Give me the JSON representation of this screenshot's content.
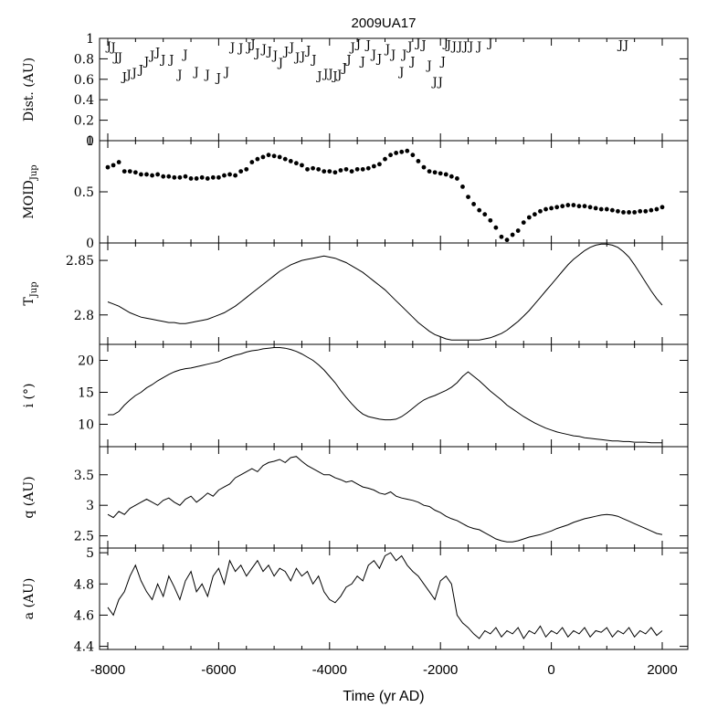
{
  "title": "2009UA17",
  "xlabel": "Time (yr AD)",
  "x_ticks": [
    "-8000",
    "-6000",
    "-4000",
    "-2000",
    "0",
    "2000"
  ],
  "colors": {
    "line": "#000000",
    "background": "#ffffff"
  },
  "chart_data": [
    {
      "type": "scatter",
      "marker": "J",
      "ylabel": "Dist. (AU)",
      "ylim": [
        0,
        1
      ],
      "y_ticks": [
        "0",
        "0.2",
        "0.4",
        "0.6",
        "0.8",
        "1"
      ],
      "x": [
        -7980,
        -7900,
        -7850,
        -7780,
        -7700,
        -7620,
        -7520,
        -7400,
        -7300,
        -7200,
        -7100,
        -7000,
        -6850,
        -6700,
        -6600,
        -6400,
        -6200,
        -6000,
        -5850,
        -5750,
        -5600,
        -5450,
        -5380,
        -5300,
        -5180,
        -5080,
        -4980,
        -4880,
        -4780,
        -4680,
        -4580,
        -4480,
        -4380,
        -4280,
        -4180,
        -4070,
        -3980,
        -3900,
        -3820,
        -3730,
        -3650,
        -3580,
        -3480,
        -3400,
        -3300,
        -3200,
        -3100,
        -2950,
        -2850,
        -2700,
        -2650,
        -2550,
        -2500,
        -2400,
        -2300,
        -2200,
        -2100,
        -2000,
        -1950,
        -1900,
        -1850,
        -1750,
        -1650,
        -1550,
        -1450,
        -1300,
        -1100,
        1250,
        1350
      ],
      "values": [
        0.93,
        0.92,
        0.82,
        0.82,
        0.63,
        0.65,
        0.67,
        0.7,
        0.78,
        0.84,
        0.87,
        0.8,
        0.8,
        0.65,
        0.85,
        0.68,
        0.65,
        0.62,
        0.68,
        0.92,
        0.91,
        0.92,
        0.95,
        0.86,
        0.9,
        0.88,
        0.84,
        0.77,
        0.88,
        0.92,
        0.82,
        0.83,
        0.89,
        0.8,
        0.64,
        0.66,
        0.66,
        0.64,
        0.65,
        0.72,
        0.8,
        0.92,
        0.95,
        0.78,
        0.94,
        0.85,
        0.81,
        0.9,
        0.85,
        0.68,
        0.85,
        0.93,
        0.78,
        0.96,
        0.94,
        0.74,
        0.58,
        0.58,
        0.78,
        0.96,
        0.94,
        0.93,
        0.93,
        0.93,
        0.93,
        0.93,
        0.96,
        0.94,
        0.94
      ]
    },
    {
      "type": "scatter",
      "ylabel": "MOIDJup",
      "ylim": [
        0,
        1
      ],
      "y_ticks": [
        "0",
        "0.5",
        "1"
      ],
      "x": [
        -8000,
        -7900,
        -7800,
        -7700,
        -7600,
        -7500,
        -7400,
        -7300,
        -7200,
        -7100,
        -7000,
        -6900,
        -6800,
        -6700,
        -6600,
        -6500,
        -6400,
        -6300,
        -6200,
        -6100,
        -6000,
        -5900,
        -5800,
        -5700,
        -5600,
        -5500,
        -5400,
        -5300,
        -5200,
        -5100,
        -5000,
        -4900,
        -4800,
        -4700,
        -4600,
        -4500,
        -4400,
        -4300,
        -4200,
        -4100,
        -4000,
        -3900,
        -3800,
        -3700,
        -3600,
        -3500,
        -3400,
        -3300,
        -3200,
        -3100,
        -3000,
        -2900,
        -2800,
        -2700,
        -2600,
        -2500,
        -2400,
        -2300,
        -2200,
        -2100,
        -2000,
        -1900,
        -1800,
        -1700,
        -1600,
        -1500,
        -1400,
        -1300,
        -1200,
        -1100,
        -1000,
        -900,
        -800,
        -700,
        -600,
        -500,
        -400,
        -300,
        -200,
        -100,
        0,
        100,
        200,
        300,
        400,
        500,
        600,
        700,
        800,
        900,
        1000,
        1100,
        1200,
        1300,
        1400,
        1500,
        1600,
        1700,
        1800,
        1900,
        2000
      ],
      "values": [
        0.74,
        0.76,
        0.79,
        0.7,
        0.7,
        0.69,
        0.67,
        0.67,
        0.66,
        0.67,
        0.65,
        0.65,
        0.64,
        0.64,
        0.65,
        0.63,
        0.63,
        0.64,
        0.63,
        0.64,
        0.64,
        0.66,
        0.67,
        0.66,
        0.7,
        0.72,
        0.79,
        0.82,
        0.84,
        0.86,
        0.85,
        0.84,
        0.82,
        0.8,
        0.78,
        0.76,
        0.72,
        0.73,
        0.72,
        0.7,
        0.7,
        0.69,
        0.71,
        0.72,
        0.7,
        0.72,
        0.72,
        0.73,
        0.75,
        0.77,
        0.82,
        0.86,
        0.88,
        0.89,
        0.9,
        0.86,
        0.8,
        0.74,
        0.7,
        0.69,
        0.68,
        0.67,
        0.65,
        0.63,
        0.55,
        0.45,
        0.38,
        0.32,
        0.28,
        0.22,
        0.15,
        0.06,
        0.03,
        0.08,
        0.12,
        0.2,
        0.25,
        0.28,
        0.31,
        0.33,
        0.34,
        0.35,
        0.36,
        0.37,
        0.37,
        0.36,
        0.36,
        0.35,
        0.34,
        0.33,
        0.33,
        0.32,
        0.31,
        0.3,
        0.3,
        0.3,
        0.31,
        0.31,
        0.32,
        0.33,
        0.35
      ]
    },
    {
      "type": "line",
      "ylabel": "TJup",
      "ylim": [
        2.773,
        2.866
      ],
      "y_ticks": [
        "2.8",
        "2.85"
      ],
      "x": [
        -8000,
        -7900,
        -7800,
        -7700,
        -7600,
        -7500,
        -7400,
        -7300,
        -7200,
        -7100,
        -7000,
        -6900,
        -6800,
        -6700,
        -6600,
        -6500,
        -6400,
        -6300,
        -6200,
        -6100,
        -6000,
        -5900,
        -5800,
        -5700,
        -5600,
        -5500,
        -5400,
        -5300,
        -5200,
        -5100,
        -5000,
        -4900,
        -4800,
        -4700,
        -4600,
        -4500,
        -4400,
        -4300,
        -4200,
        -4100,
        -4000,
        -3900,
        -3800,
        -3700,
        -3600,
        -3500,
        -3400,
        -3300,
        -3200,
        -3100,
        -3000,
        -2900,
        -2800,
        -2700,
        -2600,
        -2500,
        -2400,
        -2300,
        -2200,
        -2100,
        -2000,
        -1900,
        -1800,
        -1700,
        -1600,
        -1500,
        -1400,
        -1300,
        -1200,
        -1100,
        -1000,
        -900,
        -800,
        -700,
        -600,
        -500,
        -400,
        -300,
        -200,
        -100,
        0,
        100,
        200,
        300,
        400,
        500,
        600,
        700,
        800,
        900,
        1000,
        1100,
        1200,
        1300,
        1400,
        1500,
        1600,
        1700,
        1800,
        1900,
        2000
      ],
      "values": [
        2.812,
        2.81,
        2.808,
        2.805,
        2.802,
        2.8,
        2.798,
        2.797,
        2.796,
        2.795,
        2.794,
        2.793,
        2.793,
        2.792,
        2.792,
        2.793,
        2.794,
        2.795,
        2.796,
        2.798,
        2.8,
        2.802,
        2.805,
        2.808,
        2.812,
        2.816,
        2.82,
        2.824,
        2.828,
        2.832,
        2.836,
        2.84,
        2.843,
        2.846,
        2.848,
        2.85,
        2.851,
        2.852,
        2.853,
        2.854,
        2.853,
        2.852,
        2.85,
        2.848,
        2.845,
        2.842,
        2.839,
        2.835,
        2.831,
        2.827,
        2.823,
        2.818,
        2.813,
        2.808,
        2.803,
        2.798,
        2.793,
        2.789,
        2.785,
        2.782,
        2.78,
        2.778,
        2.777,
        2.777,
        2.777,
        2.777,
        2.777,
        2.777,
        2.778,
        2.779,
        2.781,
        2.783,
        2.786,
        2.79,
        2.794,
        2.799,
        2.804,
        2.81,
        2.816,
        2.822,
        2.828,
        2.834,
        2.84,
        2.846,
        2.851,
        2.855,
        2.859,
        2.862,
        2.864,
        2.865,
        2.865,
        2.864,
        2.862,
        2.858,
        2.853,
        2.846,
        2.838,
        2.83,
        2.822,
        2.815,
        2.809
      ]
    },
    {
      "type": "line",
      "ylabel": "i (°)",
      "ylim": [
        6.5,
        22.5
      ],
      "y_ticks": [
        "10",
        "15",
        "20"
      ],
      "x": [
        -8000,
        -7900,
        -7800,
        -7700,
        -7600,
        -7500,
        -7400,
        -7300,
        -7200,
        -7100,
        -7000,
        -6900,
        -6800,
        -6700,
        -6600,
        -6500,
        -6400,
        -6300,
        -6200,
        -6100,
        -6000,
        -5900,
        -5800,
        -5700,
        -5600,
        -5500,
        -5400,
        -5300,
        -5200,
        -5100,
        -5000,
        -4900,
        -4800,
        -4700,
        -4600,
        -4500,
        -4400,
        -4300,
        -4200,
        -4100,
        -4000,
        -3900,
        -3800,
        -3700,
        -3600,
        -3500,
        -3400,
        -3300,
        -3200,
        -3100,
        -3000,
        -2900,
        -2800,
        -2700,
        -2600,
        -2500,
        -2400,
        -2300,
        -2200,
        -2100,
        -2000,
        -1900,
        -1800,
        -1700,
        -1600,
        -1500,
        -1400,
        -1300,
        -1200,
        -1100,
        -1000,
        -900,
        -800,
        -700,
        -600,
        -500,
        -400,
        -300,
        -200,
        -100,
        0,
        100,
        200,
        300,
        400,
        500,
        600,
        700,
        800,
        900,
        1000,
        1100,
        1200,
        1300,
        1400,
        1500,
        1600,
        1700,
        1800,
        1900,
        2000
      ],
      "values": [
        11.5,
        11.5,
        12.0,
        13.0,
        13.8,
        14.5,
        15.0,
        15.7,
        16.2,
        16.8,
        17.3,
        17.8,
        18.2,
        18.5,
        18.7,
        18.8,
        19.0,
        19.2,
        19.4,
        19.6,
        19.8,
        20.2,
        20.5,
        20.8,
        21.0,
        21.3,
        21.5,
        21.6,
        21.8,
        21.9,
        22.0,
        22.0,
        21.9,
        21.7,
        21.4,
        21.0,
        20.5,
        20.0,
        19.3,
        18.5,
        17.5,
        16.5,
        15.3,
        14.2,
        13.2,
        12.3,
        11.6,
        11.2,
        11.0,
        10.8,
        10.7,
        10.7,
        10.8,
        11.2,
        11.8,
        12.5,
        13.2,
        13.8,
        14.2,
        14.5,
        14.9,
        15.3,
        15.8,
        16.5,
        17.5,
        18.2,
        17.5,
        16.8,
        16.0,
        15.2,
        14.5,
        13.8,
        13.0,
        12.4,
        11.8,
        11.2,
        10.7,
        10.2,
        9.8,
        9.4,
        9.1,
        8.8,
        8.6,
        8.4,
        8.2,
        8.1,
        7.9,
        7.8,
        7.7,
        7.6,
        7.5,
        7.4,
        7.4,
        7.3,
        7.3,
        7.2,
        7.2,
        7.2,
        7.1,
        7.1,
        7.1
      ]
    },
    {
      "type": "line",
      "ylabel": "q (AU)",
      "ylim": [
        2.3,
        3.96
      ],
      "y_ticks": [
        "2.5",
        "3",
        "3.5"
      ],
      "x": [
        -8000,
        -7900,
        -7800,
        -7700,
        -7600,
        -7500,
        -7400,
        -7300,
        -7200,
        -7100,
        -7000,
        -6900,
        -6800,
        -6700,
        -6600,
        -6500,
        -6400,
        -6300,
        -6200,
        -6100,
        -6000,
        -5900,
        -5800,
        -5700,
        -5600,
        -5500,
        -5400,
        -5300,
        -5200,
        -5100,
        -5000,
        -4900,
        -4800,
        -4700,
        -4600,
        -4500,
        -4400,
        -4300,
        -4200,
        -4100,
        -4000,
        -3900,
        -3800,
        -3700,
        -3600,
        -3500,
        -3400,
        -3300,
        -3200,
        -3100,
        -3000,
        -2900,
        -2800,
        -2700,
        -2600,
        -2500,
        -2400,
        -2300,
        -2200,
        -2100,
        -2000,
        -1900,
        -1800,
        -1700,
        -1600,
        -1500,
        -1400,
        -1300,
        -1200,
        -1100,
        -1000,
        -900,
        -800,
        -700,
        -600,
        -500,
        -400,
        -300,
        -200,
        -100,
        0,
        100,
        200,
        300,
        400,
        500,
        600,
        700,
        800,
        900,
        1000,
        1100,
        1200,
        1300,
        1400,
        1500,
        1600,
        1700,
        1800,
        1900,
        2000
      ],
      "values": [
        2.85,
        2.8,
        2.9,
        2.85,
        2.95,
        3.0,
        3.05,
        3.1,
        3.05,
        3.0,
        3.08,
        3.12,
        3.05,
        3.0,
        3.1,
        3.15,
        3.05,
        3.12,
        3.2,
        3.15,
        3.25,
        3.3,
        3.35,
        3.45,
        3.5,
        3.55,
        3.6,
        3.55,
        3.65,
        3.7,
        3.72,
        3.75,
        3.7,
        3.78,
        3.8,
        3.72,
        3.65,
        3.6,
        3.55,
        3.5,
        3.5,
        3.45,
        3.42,
        3.38,
        3.4,
        3.35,
        3.3,
        3.28,
        3.25,
        3.2,
        3.18,
        3.22,
        3.15,
        3.12,
        3.1,
        3.08,
        3.05,
        3.0,
        2.98,
        2.92,
        2.88,
        2.82,
        2.78,
        2.75,
        2.7,
        2.65,
        2.62,
        2.6,
        2.55,
        2.5,
        2.45,
        2.42,
        2.4,
        2.4,
        2.42,
        2.45,
        2.48,
        2.5,
        2.52,
        2.55,
        2.58,
        2.62,
        2.65,
        2.68,
        2.72,
        2.75,
        2.78,
        2.8,
        2.82,
        2.84,
        2.85,
        2.84,
        2.82,
        2.78,
        2.74,
        2.7,
        2.66,
        2.62,
        2.58,
        2.54,
        2.52
      ]
    },
    {
      "type": "line",
      "ylabel": "a (AU)",
      "ylim": [
        4.38,
        5.03
      ],
      "y_ticks": [
        "4.4",
        "4.6",
        "4.8",
        "5"
      ],
      "x": [
        -8000,
        -7900,
        -7800,
        -7700,
        -7600,
        -7500,
        -7400,
        -7300,
        -7200,
        -7100,
        -7000,
        -6900,
        -6800,
        -6700,
        -6600,
        -6500,
        -6400,
        -6300,
        -6200,
        -6100,
        -6000,
        -5900,
        -5800,
        -5700,
        -5600,
        -5500,
        -5400,
        -5300,
        -5200,
        -5100,
        -5000,
        -4900,
        -4800,
        -4700,
        -4600,
        -4500,
        -4400,
        -4300,
        -4200,
        -4100,
        -4000,
        -3900,
        -3800,
        -3700,
        -3600,
        -3500,
        -3400,
        -3300,
        -3200,
        -3100,
        -3000,
        -2900,
        -2800,
        -2700,
        -2600,
        -2500,
        -2400,
        -2300,
        -2200,
        -2100,
        -2000,
        -1900,
        -1800,
        -1700,
        -1600,
        -1500,
        -1400,
        -1300,
        -1200,
        -1100,
        -1000,
        -900,
        -800,
        -700,
        -600,
        -500,
        -400,
        -300,
        -200,
        -100,
        0,
        100,
        200,
        300,
        400,
        500,
        600,
        700,
        800,
        900,
        1000,
        1100,
        1200,
        1300,
        1400,
        1500,
        1600,
        1700,
        1800,
        1900,
        2000
      ],
      "values": [
        4.65,
        4.6,
        4.7,
        4.75,
        4.85,
        4.92,
        4.82,
        4.75,
        4.7,
        4.8,
        4.72,
        4.85,
        4.78,
        4.7,
        4.82,
        4.88,
        4.75,
        4.8,
        4.72,
        4.85,
        4.9,
        4.8,
        4.95,
        4.88,
        4.92,
        4.85,
        4.9,
        4.95,
        4.88,
        4.92,
        4.85,
        4.9,
        4.88,
        4.82,
        4.9,
        4.85,
        4.88,
        4.8,
        4.85,
        4.75,
        4.7,
        4.68,
        4.72,
        4.78,
        4.8,
        4.85,
        4.82,
        4.92,
        4.95,
        4.9,
        4.98,
        5.0,
        4.95,
        4.98,
        4.92,
        4.88,
        4.85,
        4.8,
        4.75,
        4.7,
        4.82,
        4.85,
        4.8,
        4.6,
        4.55,
        4.52,
        4.48,
        4.45,
        4.5,
        4.48,
        4.52,
        4.46,
        4.5,
        4.48,
        4.52,
        4.45,
        4.5,
        4.48,
        4.53,
        4.46,
        4.5,
        4.48,
        4.52,
        4.46,
        4.5,
        4.48,
        4.52,
        4.46,
        4.5,
        4.49,
        4.52,
        4.46,
        4.5,
        4.48,
        4.52,
        4.46,
        4.5,
        4.48,
        4.52,
        4.47,
        4.5
      ]
    }
  ]
}
